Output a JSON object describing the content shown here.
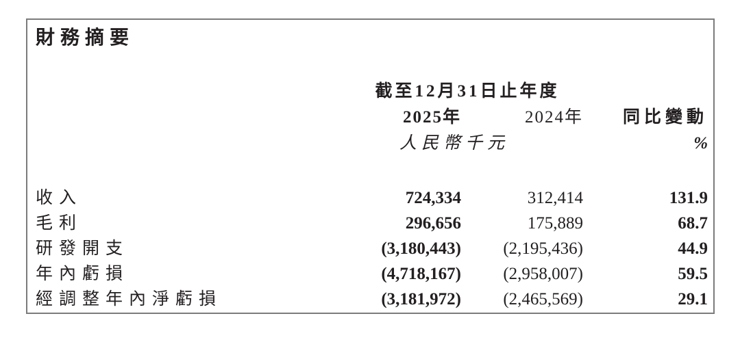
{
  "title": "財務摘要",
  "table": {
    "period_header": "截至12月31日止年度",
    "col_2025": "2025年",
    "col_2024": "2024年",
    "col_change": "同比變動",
    "unit": "人民幣千元",
    "unit_change": "%",
    "rows": [
      {
        "label": "收入",
        "v2025": "724,334",
        "v2024": "312,414",
        "change": "131.9"
      },
      {
        "label": "毛利",
        "v2025": "296,656",
        "v2024": "175,889",
        "change": "68.7"
      },
      {
        "label": "研發開支",
        "v2025": "(3,180,443)",
        "v2024": "(2,195,436)",
        "change": "44.9"
      },
      {
        "label": "年內虧損",
        "v2025": "(4,718,167)",
        "v2024": "(2,958,007)",
        "change": "59.5"
      },
      {
        "label": "經調整年內淨虧損",
        "v2025": "(3,181,972)",
        "v2024": "(2,465,569)",
        "change": "29.1"
      }
    ]
  },
  "colors": {
    "text": "#231f20",
    "border": "#7b7b7b",
    "background": "#ffffff"
  }
}
